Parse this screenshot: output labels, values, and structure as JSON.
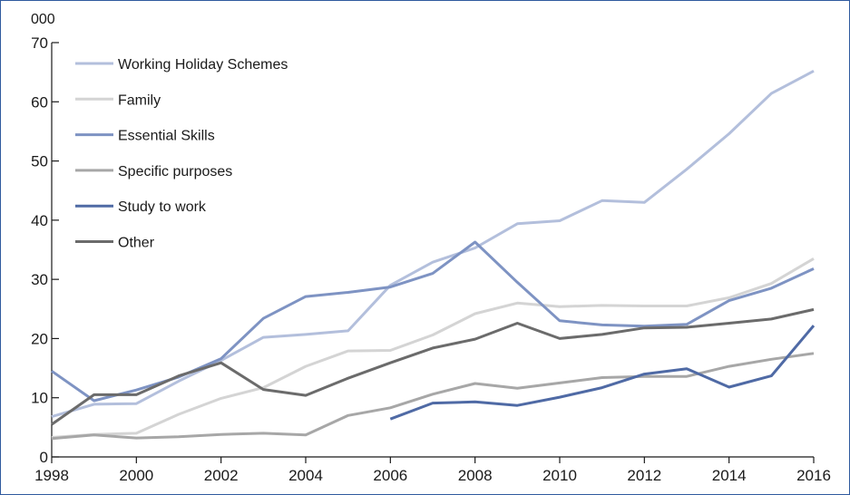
{
  "chart_data": {
    "type": "line",
    "unit_label": "000",
    "xlim": [
      1998,
      2016
    ],
    "ylim": [
      0,
      70
    ],
    "x_ticks": [
      1998,
      2000,
      2002,
      2004,
      2006,
      2008,
      2010,
      2012,
      2014,
      2016
    ],
    "x_tick_labels": [
      "1998",
      "2000",
      "2002",
      "2004",
      "2006",
      "2008",
      "2010",
      "2012",
      "2014",
      "2016"
    ],
    "y_ticks": [
      0,
      10,
      20,
      30,
      40,
      50,
      60,
      70
    ],
    "y_tick_labels": [
      "0",
      "10",
      "20",
      "30",
      "40",
      "50",
      "60",
      "70"
    ],
    "grid": false,
    "legend_position": "top-left",
    "series": [
      {
        "name": "Working Holiday Schemes",
        "color": "#b3bfdc",
        "points": [
          [
            1998,
            6.8
          ],
          [
            1999,
            8.9
          ],
          [
            2000,
            9.0
          ],
          [
            2001,
            12.8
          ],
          [
            2002,
            16.3
          ],
          [
            2003,
            20.2
          ],
          [
            2004,
            20.7
          ],
          [
            2005,
            21.3
          ],
          [
            2006,
            29.0
          ],
          [
            2007,
            32.9
          ],
          [
            2008,
            35.3
          ],
          [
            2009,
            39.4
          ],
          [
            2010,
            39.9
          ],
          [
            2011,
            43.3
          ],
          [
            2012,
            43.0
          ],
          [
            2013,
            48.6
          ],
          [
            2014,
            54.6
          ],
          [
            2015,
            61.4
          ],
          [
            2016,
            65.2
          ]
        ]
      },
      {
        "name": "Family",
        "color": "#d4d4d4",
        "points": [
          [
            1998,
            3.3
          ],
          [
            1999,
            3.8
          ],
          [
            2000,
            4.0
          ],
          [
            2001,
            7.2
          ],
          [
            2002,
            9.9
          ],
          [
            2003,
            11.7
          ],
          [
            2004,
            15.3
          ],
          [
            2005,
            17.9
          ],
          [
            2006,
            18.0
          ],
          [
            2007,
            20.6
          ],
          [
            2008,
            24.2
          ],
          [
            2009,
            26.0
          ],
          [
            2010,
            25.4
          ],
          [
            2011,
            25.6
          ],
          [
            2012,
            25.5
          ],
          [
            2013,
            25.5
          ],
          [
            2014,
            26.9
          ],
          [
            2015,
            29.3
          ],
          [
            2016,
            33.5
          ]
        ]
      },
      {
        "name": "Essential Skills",
        "color": "#7e93c3",
        "points": [
          [
            1998,
            14.5
          ],
          [
            1999,
            9.5
          ],
          [
            2000,
            11.3
          ],
          [
            2001,
            13.5
          ],
          [
            2002,
            16.6
          ],
          [
            2003,
            23.4
          ],
          [
            2004,
            27.1
          ],
          [
            2005,
            27.8
          ],
          [
            2006,
            28.7
          ],
          [
            2007,
            31.0
          ],
          [
            2008,
            36.3
          ],
          [
            2009,
            29.5
          ],
          [
            2010,
            23.0
          ],
          [
            2011,
            22.3
          ],
          [
            2012,
            22.1
          ],
          [
            2013,
            22.4
          ],
          [
            2014,
            26.4
          ],
          [
            2015,
            28.5
          ],
          [
            2016,
            31.8
          ]
        ]
      },
      {
        "name": "Specific purposes",
        "color": "#a7a7a7",
        "points": [
          [
            1998,
            3.1
          ],
          [
            1999,
            3.7
          ],
          [
            2000,
            3.2
          ],
          [
            2001,
            3.4
          ],
          [
            2002,
            3.8
          ],
          [
            2003,
            4.0
          ],
          [
            2004,
            3.7
          ],
          [
            2005,
            7.0
          ],
          [
            2006,
            8.3
          ],
          [
            2007,
            10.6
          ],
          [
            2008,
            12.4
          ],
          [
            2009,
            11.6
          ],
          [
            2010,
            12.5
          ],
          [
            2011,
            13.4
          ],
          [
            2012,
            13.6
          ],
          [
            2013,
            13.6
          ],
          [
            2014,
            15.3
          ],
          [
            2015,
            16.5
          ],
          [
            2016,
            17.5
          ]
        ]
      },
      {
        "name": "Study to work",
        "color": "#4f6aa5",
        "points": [
          [
            2006,
            6.4
          ],
          [
            2007,
            9.1
          ],
          [
            2008,
            9.3
          ],
          [
            2009,
            8.7
          ],
          [
            2010,
            10.1
          ],
          [
            2011,
            11.7
          ],
          [
            2012,
            14.0
          ],
          [
            2013,
            14.9
          ],
          [
            2014,
            11.8
          ],
          [
            2015,
            13.7
          ],
          [
            2016,
            22.2
          ]
        ]
      },
      {
        "name": "Other",
        "color": "#6b6b6b",
        "points": [
          [
            1998,
            5.5
          ],
          [
            1999,
            10.5
          ],
          [
            2000,
            10.5
          ],
          [
            2001,
            13.7
          ],
          [
            2002,
            15.9
          ],
          [
            2003,
            11.4
          ],
          [
            2004,
            10.4
          ],
          [
            2005,
            13.3
          ],
          [
            2006,
            15.9
          ],
          [
            2007,
            18.4
          ],
          [
            2008,
            19.9
          ],
          [
            2009,
            22.6
          ],
          [
            2010,
            20.0
          ],
          [
            2011,
            20.7
          ],
          [
            2012,
            21.8
          ],
          [
            2013,
            21.9
          ],
          [
            2014,
            22.6
          ],
          [
            2015,
            23.3
          ],
          [
            2016,
            24.9
          ]
        ]
      }
    ]
  }
}
